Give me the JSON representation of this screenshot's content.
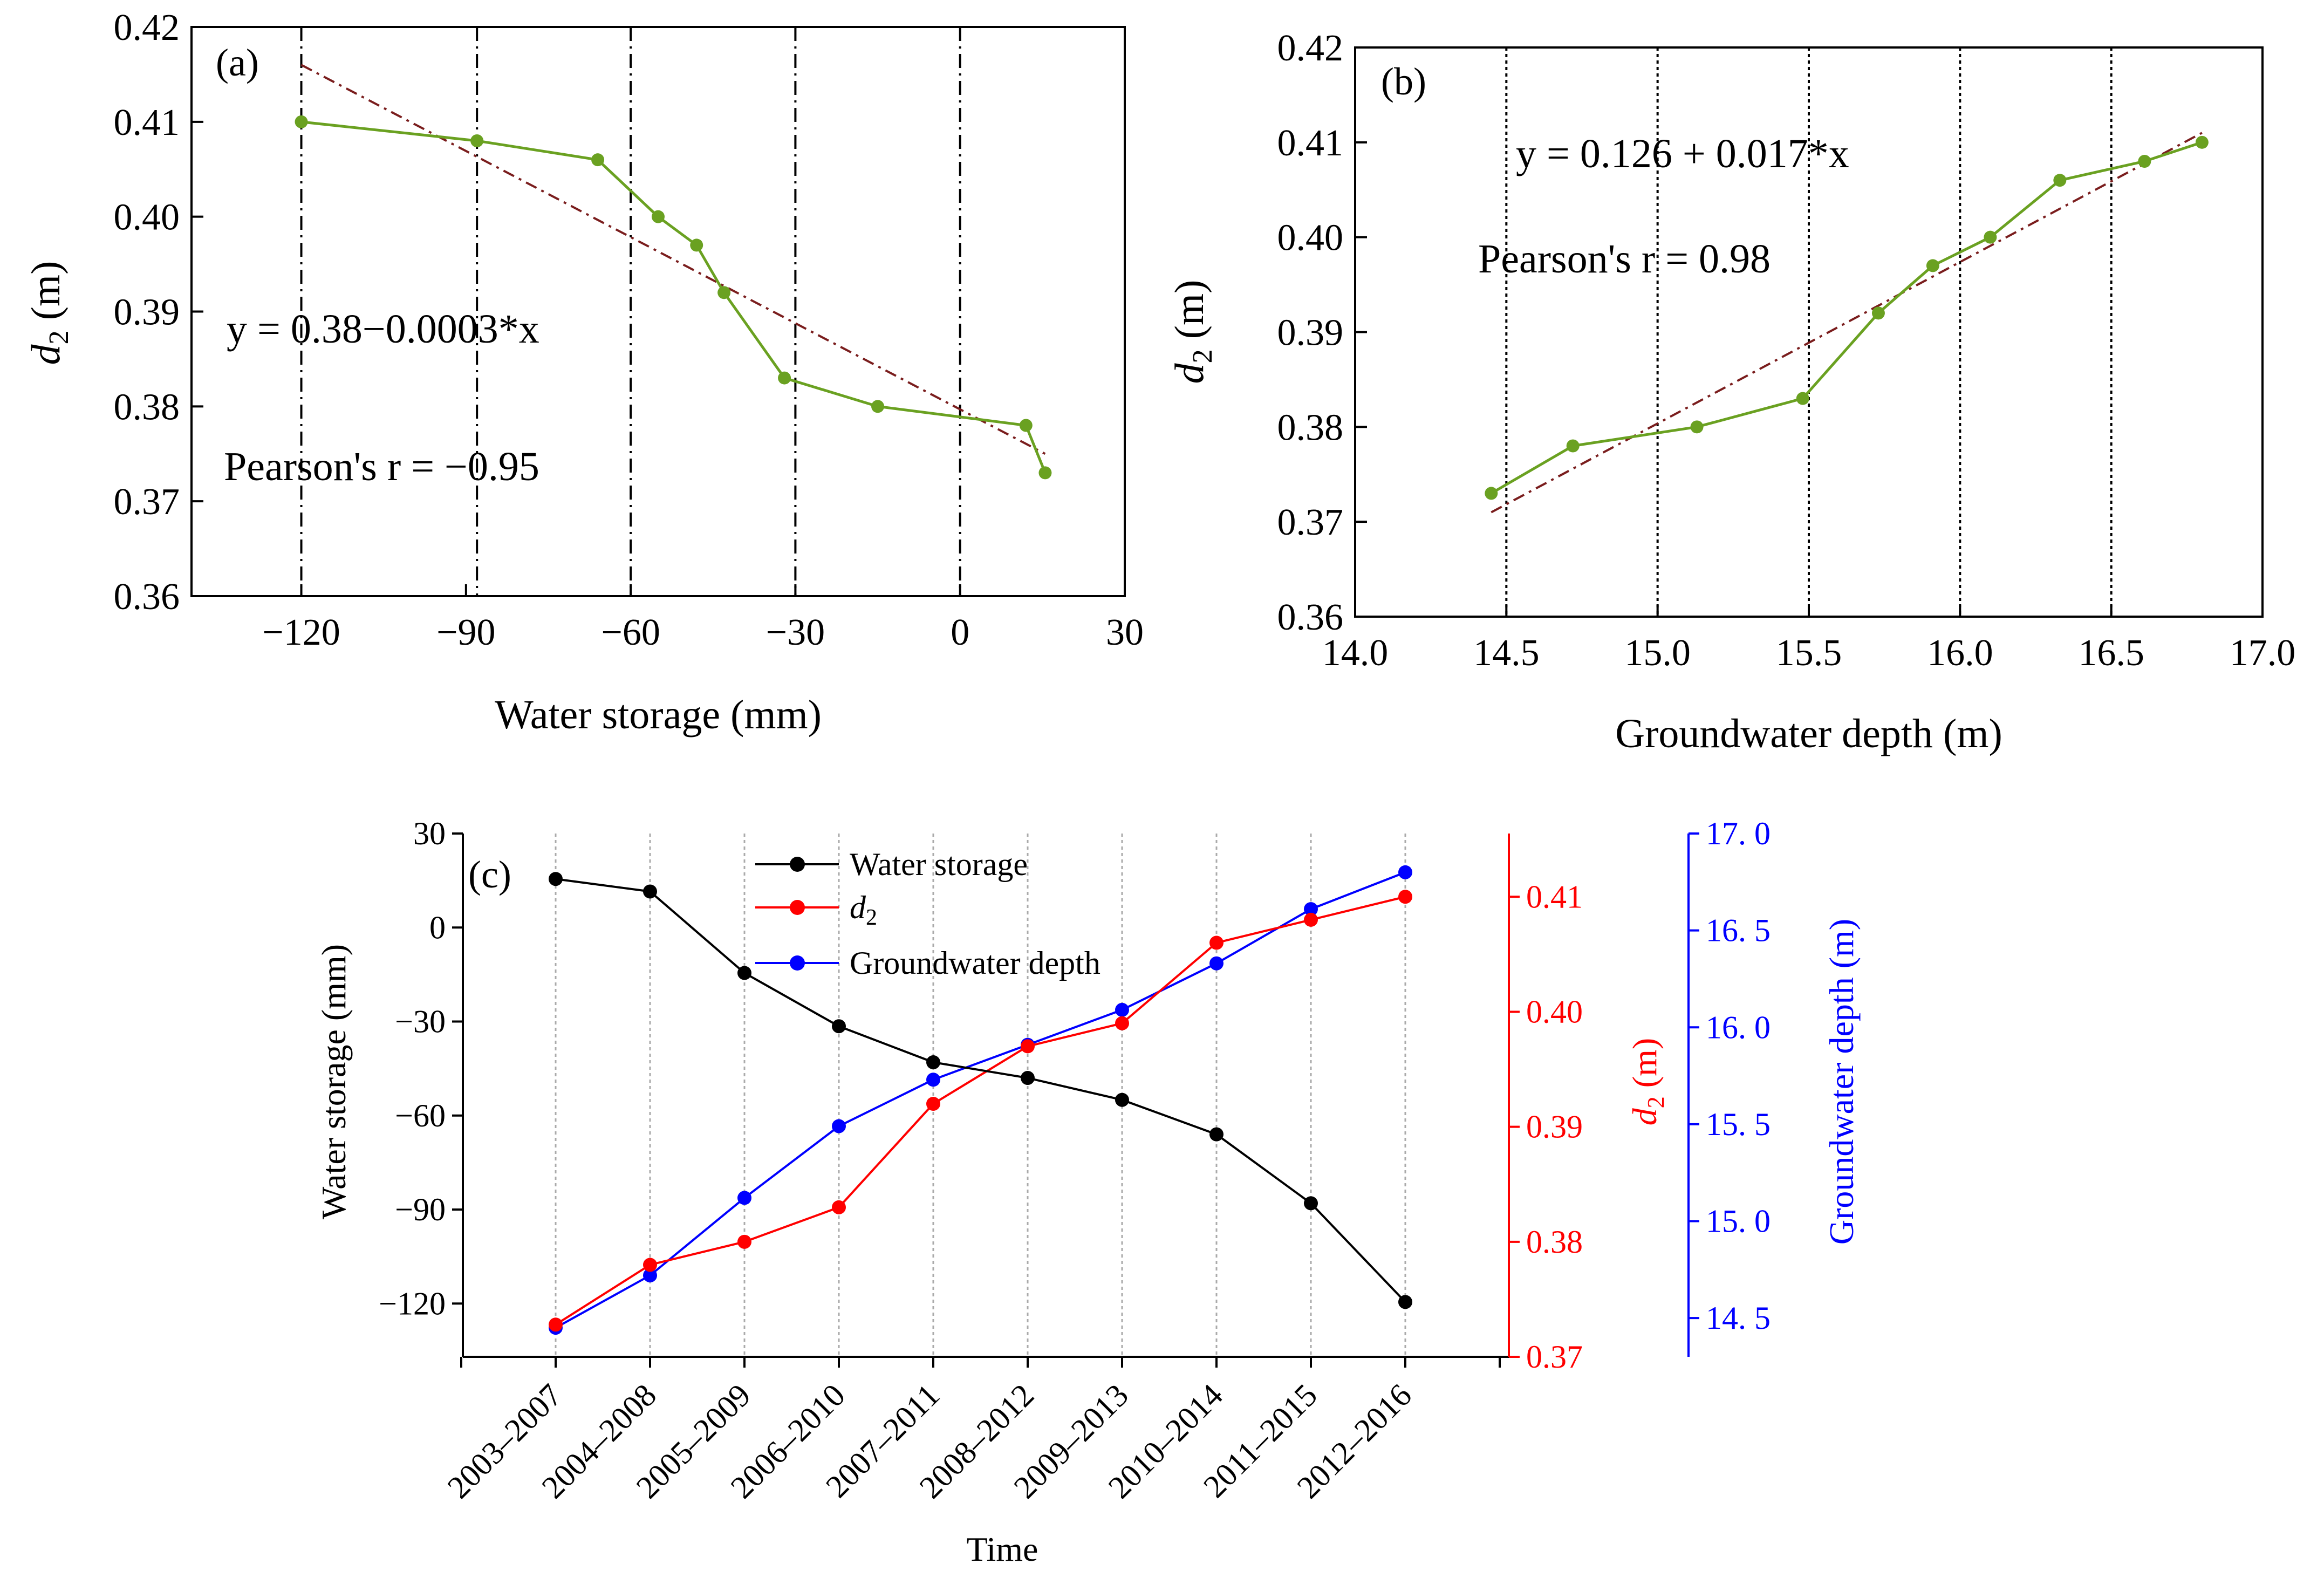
{
  "chart_data": [
    {
      "panel": "(a)",
      "type": "scatter",
      "xlabel": "Water storage (mm)",
      "ylabel_main": "d",
      "ylabel_sub": "2",
      "ylabel_unit": " (m)",
      "xlim": [
        -140,
        30
      ],
      "ylim": [
        0.36,
        0.42
      ],
      "xticks": [
        -120,
        -90,
        -60,
        -30,
        0,
        30
      ],
      "xtick_labels": [
        "−120",
        "−90",
        "−60",
        "−30",
        "0",
        "30"
      ],
      "yticks": [
        0.36,
        0.37,
        0.38,
        0.39,
        0.4,
        0.41,
        0.42
      ],
      "ytick_labels": [
        "0.36",
        "0.37",
        "0.38",
        "0.39",
        "0.40",
        "0.41",
        "0.42"
      ],
      "vlines": [
        -120,
        -88,
        -60,
        -30,
        0
      ],
      "series": [
        {
          "color": "#6aa121",
          "x": [
            -120,
            -88,
            -66,
            -55,
            -48,
            -43,
            -32,
            -15,
            12,
            15.5
          ],
          "y": [
            0.41,
            0.408,
            0.406,
            0.4,
            0.397,
            0.392,
            0.383,
            0.38,
            0.378,
            0.373
          ]
        }
      ],
      "fit": {
        "color": "#7a1d1d",
        "x": [
          -120,
          15.5
        ],
        "y": [
          0.416,
          0.375
        ]
      },
      "equation": "y = 0.38−0.0003*x",
      "pearson": "Pearson's r = −0.95"
    },
    {
      "panel": "(b)",
      "type": "scatter",
      "xlabel": "Groundwater depth (m)",
      "ylabel_main": "d",
      "ylabel_sub": "2",
      "ylabel_unit": " (m)",
      "xlim": [
        14.0,
        17.0
      ],
      "ylim": [
        0.36,
        0.42
      ],
      "xticks": [
        14.0,
        14.5,
        15.0,
        15.5,
        16.0,
        16.5,
        17.0
      ],
      "xtick_labels": [
        "14.0",
        "14.5",
        "15.0",
        "15.5",
        "16.0",
        "16.5",
        "17.0"
      ],
      "yticks": [
        0.36,
        0.37,
        0.38,
        0.39,
        0.4,
        0.41,
        0.42
      ],
      "ytick_labels": [
        "0.36",
        "0.37",
        "0.38",
        "0.39",
        "0.40",
        "0.41",
        "0.42"
      ],
      "vlines": [
        14.5,
        15.0,
        15.5,
        16.0,
        16.5
      ],
      "series": [
        {
          "color": "#6aa121",
          "x": [
            14.45,
            14.72,
            15.13,
            15.48,
            15.73,
            15.91,
            16.1,
            16.33,
            16.61,
            16.8
          ],
          "y": [
            0.373,
            0.378,
            0.38,
            0.383,
            0.392,
            0.397,
            0.4,
            0.406,
            0.408,
            0.41
          ]
        }
      ],
      "fit": {
        "color": "#7a1d1d",
        "x": [
          14.45,
          16.8
        ],
        "y": [
          0.371,
          0.411
        ]
      },
      "equation": "y = 0.126 + 0.017*x",
      "pearson": "Pearson's r = 0.98"
    },
    {
      "panel": "(c)",
      "type": "line",
      "xlabel": "Time",
      "categories": [
        "2003–2007",
        "2004–2008",
        "2005–2009",
        "2006–2010",
        "2007–2011",
        "2008–2012",
        "2009–2013",
        "2010–2014",
        "2011–2015",
        "2012–2016"
      ],
      "legend_position": "top-center",
      "axes": {
        "left": {
          "label": "Water storage (mm)",
          "lim": [
            -137,
            30
          ],
          "ticks": [
            -120,
            -90,
            -60,
            -30,
            0,
            30
          ],
          "tick_labels": [
            "−120",
            "−90",
            "−60",
            "−30",
            "0",
            "30"
          ],
          "color": "#000000"
        },
        "right1": {
          "label_main": "d",
          "label_sub": "2",
          "label_unit": " (m)",
          "lim": [
            0.37,
            0.4155
          ],
          "ticks": [
            0.37,
            0.38,
            0.39,
            0.4,
            0.41
          ],
          "tick_labels": [
            "0.37",
            "0.38",
            "0.39",
            "0.40",
            "0.41"
          ],
          "color": "#ff0000"
        },
        "right2": {
          "label": "Groundwater depth (m)",
          "lim": [
            14.3,
            17.0
          ],
          "ticks": [
            14.5,
            15.0,
            15.5,
            16.0,
            16.5,
            17.0
          ],
          "tick_labels": [
            "14. 5",
            "15. 0",
            "15. 5",
            "16. 0",
            "16. 5",
            "17. 0"
          ],
          "color": "#0000ff"
        }
      },
      "series": [
        {
          "name": "Water storage",
          "axis": "left",
          "color": "#000000",
          "values": [
            15.5,
            11.5,
            -14.5,
            -31.5,
            -43,
            -48,
            -55,
            -66,
            -88,
            -119.5
          ]
        },
        {
          "name_main": "d",
          "name_sub": "2",
          "axis": "right1",
          "color": "#ff0000",
          "values": [
            0.3728,
            0.378,
            0.38,
            0.383,
            0.392,
            0.397,
            0.399,
            0.406,
            0.408,
            0.41
          ]
        },
        {
          "name": "Groundwater depth",
          "axis": "right2",
          "color": "#0000ff",
          "values": [
            14.45,
            14.72,
            15.12,
            15.49,
            15.73,
            15.91,
            16.09,
            16.33,
            16.61,
            16.8
          ]
        }
      ]
    }
  ]
}
